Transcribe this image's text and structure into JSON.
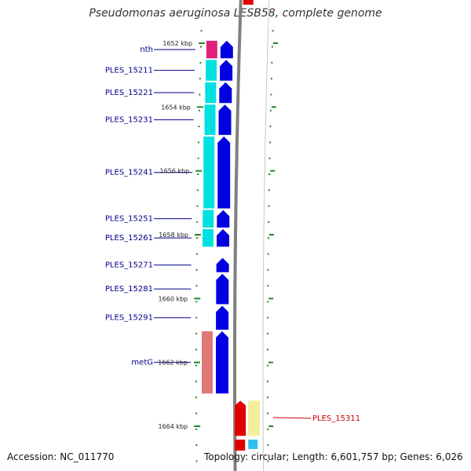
{
  "title": "Pseudomonas aeruginosa LESB58, complete genome",
  "accession_label": "Accession: NC_011770",
  "topology_label": "Topology: circular; Length: 6,601,757 bp; Genes: 6,026",
  "tick_unit": "kbp",
  "ticks": [
    1652,
    1654,
    1656,
    1658,
    1660,
    1662,
    1664
  ],
  "colors": {
    "cds": "#0000e0",
    "cog_magenta": "#e0207a",
    "cog_cyan": "#00e0e0",
    "cog_salmon": "#e07878",
    "cog_red": "#e00000",
    "cog_yellow": "#f4ee9a",
    "cog_lightblue": "#30c0f0",
    "tick_green": "#1e8a1e",
    "backbone": "#808080",
    "label_blue": "#00008b",
    "label_red": "#cc0000"
  },
  "genes_left": [
    {
      "name": "nth",
      "strand": "forward",
      "cog": "cog_magenta",
      "start": 1651.9,
      "end": 1652.5
    },
    {
      "name": "PLES_15211",
      "strand": "forward",
      "cog": "cog_cyan",
      "start": 1652.5,
      "end": 1653.2
    },
    {
      "name": "PLES_15221",
      "strand": "forward",
      "cog": "cog_cyan",
      "start": 1653.2,
      "end": 1653.9
    },
    {
      "name": "PLES_15231",
      "strand": "forward",
      "cog": "cog_cyan",
      "start": 1653.9,
      "end": 1654.9
    },
    {
      "name": "PLES_15241",
      "strand": "forward",
      "cog": "cog_cyan",
      "start": 1654.9,
      "end": 1657.2
    },
    {
      "name": "PLES_15251",
      "strand": "forward",
      "cog": "cog_cyan",
      "start": 1657.2,
      "end": 1657.8
    },
    {
      "name": "PLES_15261",
      "strand": "forward",
      "cog": "cog_cyan",
      "start": 1657.8,
      "end": 1658.4
    },
    {
      "name": "PLES_15271",
      "strand": "forward",
      "cog": null,
      "start": 1658.7,
      "end": 1659.2
    },
    {
      "name": "PLES_15281",
      "strand": "forward",
      "cog": null,
      "start": 1659.2,
      "end": 1660.2
    },
    {
      "name": "PLES_15291",
      "strand": "forward",
      "cog": null,
      "start": 1660.2,
      "end": 1661.0
    },
    {
      "name": "metG",
      "strand": "forward",
      "cog": "cog_salmon",
      "start": 1661.0,
      "end": 1663.0
    }
  ],
  "genes_right": [
    {
      "name": "PLES_15311",
      "strand": "reverse",
      "cog": "cog_yellow",
      "start": 1663.2,
      "end": 1664.3
    }
  ]
}
